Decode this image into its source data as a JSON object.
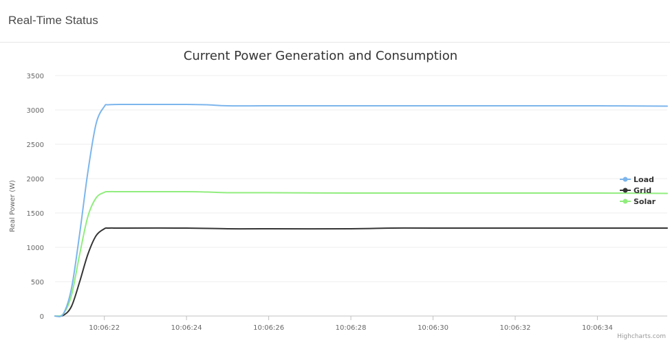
{
  "panel": {
    "title": "Real-Time Status"
  },
  "credits": "Highcharts.com",
  "chart_data": {
    "type": "line",
    "title": "Current Power Generation and Consumption",
    "xlabel": "",
    "ylabel": "Real Power (W)",
    "ylim": [
      0,
      3500
    ],
    "yticks": [
      0,
      500,
      1000,
      1500,
      2000,
      2500,
      3000,
      3500
    ],
    "xlim": [
      "10:06:20.8",
      "10:06:35.7"
    ],
    "xticks": [
      "10:06:22",
      "10:06:24",
      "10:06:26",
      "10:06:28",
      "10:06:30",
      "10:06:32",
      "10:06:34"
    ],
    "grid": true,
    "legend_position": "right",
    "series": [
      {
        "name": "Load",
        "color": "#7cb5ec",
        "x": [
          "10:06:20.8",
          "10:06:21.0",
          "10:06:21.2",
          "10:06:21.4",
          "10:06:21.6",
          "10:06:21.8",
          "10:06:22.0",
          "10:06:22.1",
          "10:06:22.5",
          "10:06:23",
          "10:06:24",
          "10:06:24.5",
          "10:06:25",
          "10:06:26",
          "10:06:28",
          "10:06:30",
          "10:06:32",
          "10:06:34",
          "10:06:35.7"
        ],
        "values": [
          0,
          30,
          400,
          1200,
          2100,
          2800,
          3050,
          3075,
          3080,
          3080,
          3080,
          3075,
          3060,
          3060,
          3060,
          3060,
          3060,
          3060,
          3055
        ]
      },
      {
        "name": "Grid",
        "color": "#333333",
        "x": [
          "10:06:20.8",
          "10:06:21.0",
          "10:06:21.2",
          "10:06:21.4",
          "10:06:21.6",
          "10:06:21.8",
          "10:06:22.0",
          "10:06:22.1",
          "10:06:22.5",
          "10:06:24",
          "10:06:25",
          "10:06:26",
          "10:06:28",
          "10:06:29",
          "10:06:30",
          "10:06:32",
          "10:06:34",
          "10:06:35.7"
        ],
        "values": [
          0,
          10,
          140,
          500,
          900,
          1170,
          1270,
          1280,
          1280,
          1280,
          1270,
          1270,
          1270,
          1280,
          1280,
          1280,
          1280,
          1280
        ]
      },
      {
        "name": "Solar",
        "color": "#90ed7d",
        "x": [
          "10:06:20.8",
          "10:06:21.0",
          "10:06:21.2",
          "10:06:21.4",
          "10:06:21.6",
          "10:06:21.8",
          "10:06:22.0",
          "10:06:22.1",
          "10:06:22.5",
          "10:06:24",
          "10:06:24.5",
          "10:06:25",
          "10:06:26",
          "10:06:28",
          "10:06:30",
          "10:06:32",
          "10:06:34",
          "10:06:35.7"
        ],
        "values": [
          0,
          30,
          300,
          900,
          1450,
          1720,
          1800,
          1810,
          1810,
          1810,
          1805,
          1795,
          1795,
          1790,
          1790,
          1790,
          1790,
          1785
        ]
      }
    ]
  }
}
